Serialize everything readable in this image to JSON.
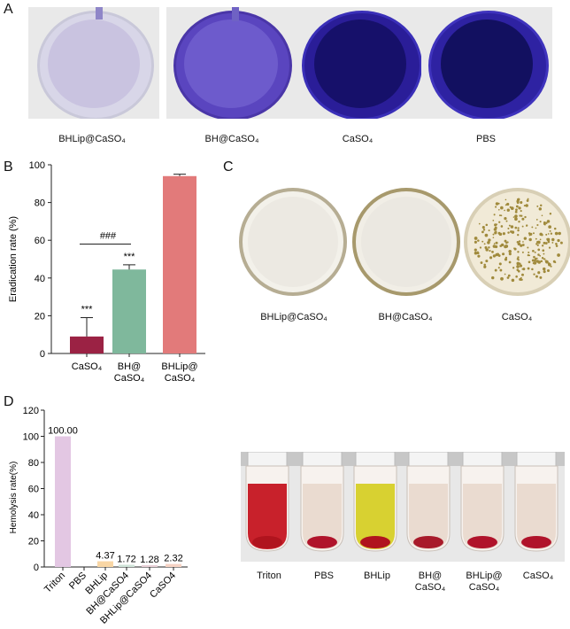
{
  "panels": {
    "a": "A",
    "b": "B",
    "c": "C",
    "d": "D"
  },
  "panel_a": {
    "labels": [
      "BHLip@CaSO₄",
      "BH@CaSO₄",
      "CaSO₄",
      "PBS"
    ]
  },
  "panel_c": {
    "labels": [
      "BHLip@CaSO₄",
      "BH@CaSO₄",
      "CaSO₄"
    ]
  },
  "tubes": {
    "labels": [
      "Triton",
      "PBS",
      "BHLip",
      "BH@\nCaSO₄",
      "BHLip@\nCaSO₄",
      "CaSO₄"
    ]
  },
  "colors": {
    "caso4_bar": "#9b2244",
    "bh_bar": "#7fb89c",
    "bhlip_bar": "#e27a7a",
    "triton_bar": "#e3c7e3",
    "bhlip_hemo_bar": "#f8d6a5"
  },
  "chart_data": [
    {
      "type": "bar",
      "title": "",
      "xlabel": "",
      "ylabel": "Eradication rate (%)",
      "ylim": [
        0,
        100
      ],
      "yticks": [
        0,
        20,
        40,
        60,
        80,
        100
      ],
      "categories": [
        "CaSO₄",
        "BH@\nCaSO₄",
        "BHLip@\nCaSO₄"
      ],
      "values": [
        9,
        44.5,
        94
      ],
      "errors": [
        10,
        2.5,
        1
      ],
      "significance": [
        "***",
        "***",
        ""
      ],
      "comparison": {
        "label": "###",
        "between": [
          0,
          1
        ]
      }
    },
    {
      "type": "bar",
      "title": "",
      "xlabel": "",
      "ylabel": "Hemolysis rate(%)",
      "ylim": [
        0,
        120
      ],
      "yticks": [
        0,
        20,
        40,
        60,
        80,
        100,
        120
      ],
      "categories": [
        "Triton",
        "PBS",
        "BHLip",
        "BH@CaSO4",
        "BHLip@CaSO4",
        "CaSO4"
      ],
      "values": [
        100.0,
        0,
        4.37,
        1.72,
        1.28,
        2.32
      ],
      "data_labels": [
        "100.00",
        "",
        "4.37",
        "1.72",
        "1.28",
        "2.32"
      ]
    }
  ]
}
